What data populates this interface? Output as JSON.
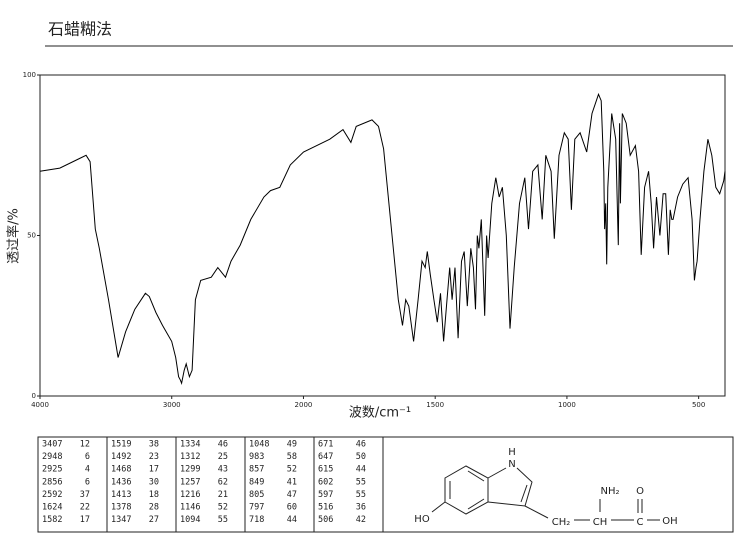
{
  "chart_data": {
    "type": "line",
    "title": "石蜡糊法",
    "xlabel": "波数/cm⁻¹",
    "ylabel": "透过率/%",
    "xlim": [
      4000,
      400
    ],
    "xbreak": 2000,
    "xticks": [
      4000,
      3000,
      2000,
      1500,
      1000,
      500
    ],
    "ylim": [
      0,
      100
    ],
    "yticks": [
      0,
      50,
      100
    ],
    "color": "#000000",
    "x": [
      4000,
      3850,
      3700,
      3650,
      3620,
      3580,
      3550,
      3480,
      3407,
      3350,
      3280,
      3200,
      3170,
      3120,
      3070,
      3000,
      2970,
      2948,
      2935,
      2925,
      2905,
      2890,
      2866,
      2845,
      2820,
      2780,
      2700,
      2650,
      2592,
      2550,
      2480,
      2400,
      2300,
      2250,
      2180,
      2100,
      2000,
      1900,
      1850,
      1820,
      1800,
      1740,
      1715,
      1696,
      1677,
      1658,
      1640,
      1624,
      1612,
      1600,
      1582,
      1565,
      1550,
      1538,
      1530,
      1519,
      1505,
      1492,
      1480,
      1468,
      1455,
      1445,
      1436,
      1425,
      1413,
      1400,
      1390,
      1378,
      1365,
      1355,
      1347,
      1340,
      1334,
      1325,
      1312,
      1305,
      1299,
      1285,
      1270,
      1257,
      1245,
      1230,
      1216,
      1200,
      1180,
      1160,
      1146,
      1130,
      1110,
      1094,
      1080,
      1060,
      1048,
      1030,
      1010,
      995,
      983,
      970,
      950,
      925,
      905,
      880,
      870,
      860,
      857,
      853,
      849,
      845,
      830,
      815,
      805,
      800,
      797,
      790,
      775,
      760,
      740,
      728,
      718,
      705,
      690,
      680,
      671,
      660,
      647,
      635,
      625,
      615,
      608,
      602,
      597,
      580,
      560,
      540,
      525,
      516,
      510,
      506,
      495,
      480,
      465,
      450,
      435,
      420,
      405,
      400
    ],
    "values": [
      70,
      71,
      74,
      75,
      73,
      52,
      46,
      30,
      12,
      20,
      27,
      32,
      31,
      26,
      22,
      17,
      12,
      6,
      5,
      4,
      8,
      10,
      6,
      8,
      30,
      36,
      37,
      40,
      37,
      42,
      47,
      55,
      62,
      64,
      65,
      72,
      76,
      80,
      83,
      79,
      84,
      86,
      84,
      77,
      61,
      45,
      30,
      22,
      30,
      28,
      17,
      30,
      42,
      40,
      45,
      38,
      30,
      23,
      32,
      17,
      30,
      40,
      30,
      40,
      18,
      42,
      45,
      28,
      46,
      40,
      27,
      50,
      46,
      55,
      25,
      50,
      43,
      60,
      68,
      62,
      65,
      50,
      21,
      40,
      60,
      68,
      52,
      70,
      72,
      55,
      75,
      70,
      49,
      75,
      82,
      80,
      58,
      80,
      82,
      76,
      88,
      94,
      92,
      70,
      52,
      60,
      41,
      65,
      88,
      80,
      47,
      85,
      60,
      88,
      85,
      75,
      78,
      70,
      44,
      65,
      70,
      60,
      46,
      62,
      50,
      63,
      63,
      44,
      58,
      55,
      55,
      62,
      66,
      68,
      55,
      36,
      40,
      42,
      55,
      70,
      80,
      75,
      65,
      63,
      67,
      70
    ]
  },
  "peak_table": {
    "wavenumber": [
      3407,
      2948,
      2925,
      2856,
      2592,
      1624,
      1582,
      1519,
      1492,
      1468,
      1436,
      1413,
      1378,
      1347,
      1334,
      1312,
      1299,
      1257,
      1216,
      1146,
      1094,
      1048,
      983,
      857,
      849,
      805,
      797,
      718,
      671,
      647,
      615,
      602,
      597,
      516,
      506
    ],
    "transmittance": [
      12,
      6,
      4,
      6,
      37,
      22,
      17,
      38,
      23,
      17,
      30,
      18,
      28,
      27,
      46,
      25,
      43,
      62,
      21,
      52,
      55,
      49,
      58,
      52,
      41,
      47,
      60,
      44,
      46,
      50,
      44,
      55,
      55,
      36,
      42
    ]
  },
  "structure": {
    "labels": [
      "H",
      "N",
      "HO",
      "NH₂",
      "O",
      "CH₂",
      "CH",
      "C",
      "OH"
    ]
  }
}
